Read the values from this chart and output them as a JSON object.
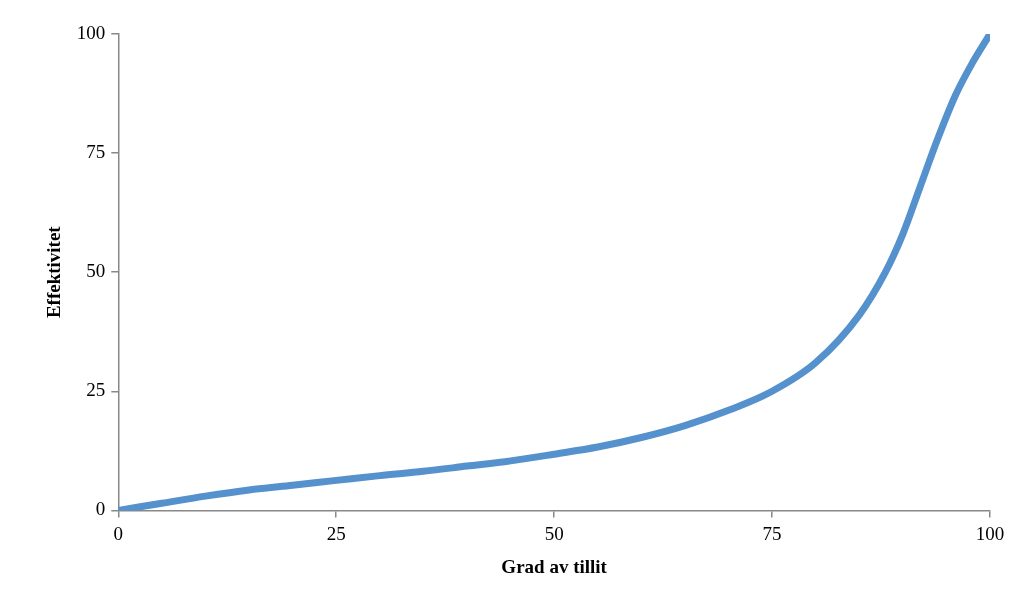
{
  "chart_data": {
    "type": "line",
    "xlabel": "Grad av tillit",
    "ylabel": "Effektivitet",
    "x": [
      0,
      5,
      10,
      15,
      20,
      25,
      30,
      35,
      40,
      45,
      50,
      55,
      60,
      65,
      70,
      75,
      80,
      85,
      88,
      90,
      92,
      94,
      96,
      98,
      100
    ],
    "series": [
      {
        "color": "#5591cd",
        "values": [
          0,
          1.5,
          3,
          4.3,
          5.3,
          6.3,
          7.3,
          8.2,
          9.3,
          10.4,
          11.8,
          13.3,
          15.3,
          17.8,
          21,
          25,
          31,
          41,
          50,
          58,
          68,
          78,
          87,
          94,
          100
        ]
      }
    ],
    "xlim": [
      0,
      100
    ],
    "xticks": [
      0,
      25,
      50,
      75,
      100
    ],
    "ylim": [
      0,
      100
    ],
    "yticks": [
      0,
      25,
      50,
      75,
      100
    ],
    "grid": false,
    "legend": false,
    "marker": "none",
    "line_style": "solid"
  }
}
